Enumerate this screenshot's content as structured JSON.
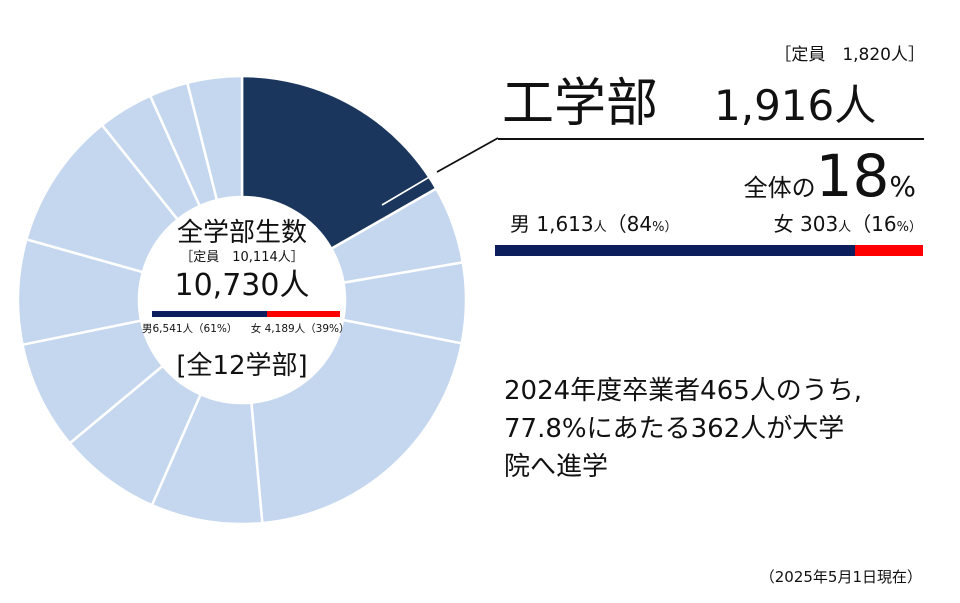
{
  "chart_data": {
    "type": "pie",
    "style": "donut",
    "highlight": {
      "name": "工学部",
      "value": 1916,
      "capacity_label": "［定員　1,820人］",
      "count_label": "1,916人",
      "overall_label": "全体の",
      "overall_pct": "18",
      "overall_pct_sign": "%",
      "male_label": "男 1,613",
      "male_unit": "人",
      "male_pct": "（84",
      "male_pct_tail": "%）",
      "female_label": "女 303",
      "female_unit": "人",
      "female_pct": "（16",
      "female_pct_tail": "%）",
      "male_count": 1613,
      "female_count": 303,
      "male_share": 0.84,
      "female_share": 0.16
    },
    "total": {
      "title": "全学部生数",
      "capacity_label": "［定員　10,114人］",
      "count_label": "10,730人",
      "male_label": "男6,541人（61%）",
      "female_label": "女 4,189人（39%）",
      "male_share": 0.61,
      "female_share": 0.39,
      "departments_label": "[全12学部]"
    },
    "slice_shares": [
      0.179,
      0.06,
      0.062,
      0.219,
      0.086,
      0.079,
      0.084,
      0.081,
      0.106,
      0.043,
      0.03,
      0.042
    ],
    "colors": {
      "highlight": "#1b365d",
      "other": "#c5d7ef",
      "border": "#ffffff",
      "male": "#0d1e5c",
      "female": "#ff0000"
    }
  },
  "note_lines": [
    "2024年度卒業者465人のうち,",
    "77.8%にあたる362人が大学",
    "院へ進学"
  ],
  "footnote": "（2025年5月1日現在）"
}
